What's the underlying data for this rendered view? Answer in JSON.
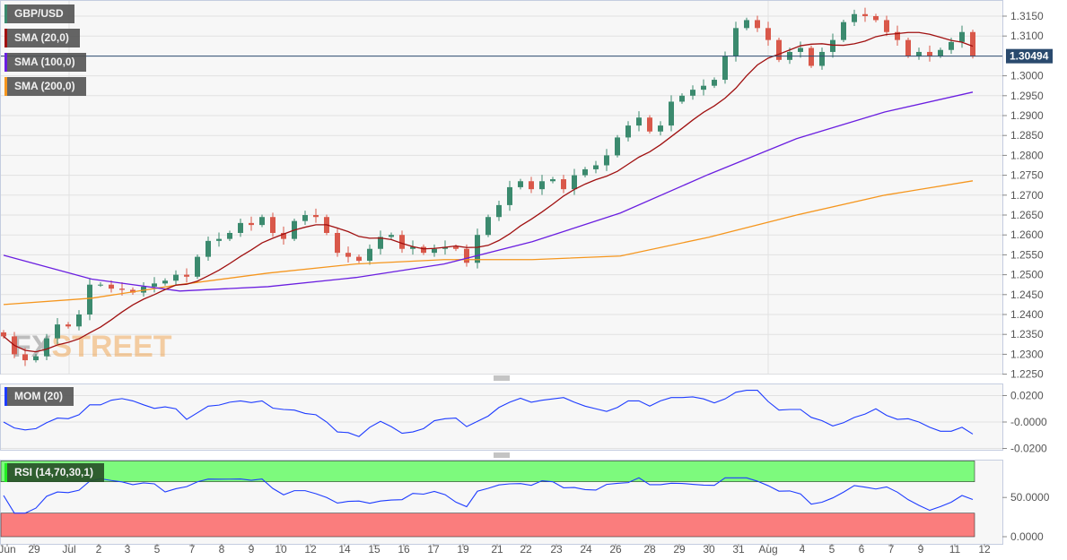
{
  "chart_data": {
    "type": "candlestick",
    "symbol": "GBP/USD",
    "legend": [
      {
        "label": "GBP/USD",
        "color": "#3b8a6e"
      },
      {
        "label": "SMA (20,0)",
        "color": "#a01010"
      },
      {
        "label": "SMA (100,0)",
        "color": "#6a1ee0"
      },
      {
        "label": "SMA (200,0)",
        "color": "#f5961e"
      }
    ],
    "last_price": "1.30494",
    "ylim": [
      1.2225,
      1.3175
    ],
    "y_ticks": [
      "1.3150",
      "1.3100",
      "1.3000",
      "1.2950",
      "1.2900",
      "1.2850",
      "1.2800",
      "1.2750",
      "1.2700",
      "1.2650",
      "1.2600",
      "1.2550",
      "1.2500",
      "1.2450",
      "1.2400",
      "1.2350",
      "1.2300",
      "1.2250"
    ],
    "x_ticks": [
      "Jun",
      "29",
      "Jul",
      "2",
      "3",
      "5",
      "7",
      "8",
      "9",
      "10",
      "12",
      "14",
      "15",
      "16",
      "17",
      "19",
      "21",
      "22",
      "23",
      "24",
      "26",
      "28",
      "29",
      "30",
      "31",
      "Aug",
      "4",
      "5",
      "6",
      "7",
      "9",
      "11",
      "12"
    ],
    "closes": [
      1.2345,
      1.23,
      1.2285,
      1.2295,
      1.234,
      1.2375,
      1.237,
      1.24,
      1.2475,
      1.2475,
      1.2465,
      1.2462,
      1.2455,
      1.247,
      1.2478,
      1.2485,
      1.25,
      1.2495,
      1.2545,
      1.2585,
      1.259,
      1.2605,
      1.263,
      1.2625,
      1.2645,
      1.2605,
      1.259,
      1.2635,
      1.265,
      1.2645,
      1.2605,
      1.2555,
      1.2545,
      1.2535,
      1.2565,
      1.2595,
      1.26,
      1.2565,
      1.257,
      1.2555,
      1.2565,
      1.257,
      1.2565,
      1.253,
      1.26,
      1.2645,
      1.2675,
      1.272,
      1.2735,
      1.2715,
      1.2735,
      1.274,
      1.2715,
      1.275,
      1.2765,
      1.2775,
      1.28,
      1.2845,
      1.2875,
      1.2895,
      1.286,
      1.2875,
      1.2935,
      1.295,
      1.2965,
      1.2975,
      1.299,
      1.305,
      1.312,
      1.314,
      1.312,
      1.309,
      1.304,
      1.306,
      1.307,
      1.3025,
      1.306,
      1.309,
      1.3135,
      1.3155,
      1.315,
      1.314,
      1.311,
      1.309,
      1.305,
      1.306,
      1.305,
      1.3065,
      1.3085,
      1.311,
      1.3049
    ],
    "sma100": [
      1.2549,
      1.2489,
      1.2459,
      1.247,
      1.2493,
      1.2527,
      1.2583,
      1.2655,
      1.2752,
      1.2842,
      1.2909,
      1.2959
    ],
    "sma200": [
      1.2425,
      1.2441,
      1.2475,
      1.2504,
      1.2527,
      1.2538,
      1.2538,
      1.2547,
      1.2594,
      1.265,
      1.27,
      1.2736
    ],
    "colors": {
      "up": "#3b8a6e",
      "down": "#d9584a",
      "price_line": "#2a4a6e"
    },
    "grid": true,
    "watermark": "FXSTREET",
    "indicators": [
      {
        "label": "MOM (20)",
        "color": "#1e3cff",
        "y_ticks": [
          "0.0200",
          "-0.0000",
          "-0.0200"
        ]
      },
      {
        "label": "RSI (14,70,30,1)",
        "color": "#1e3cff",
        "band_colors": {
          "overbought": "#7dfa7d",
          "oversold": "#fa7d7d"
        },
        "y_ticks": [
          "50.0000",
          "0.0000"
        ]
      }
    ]
  }
}
